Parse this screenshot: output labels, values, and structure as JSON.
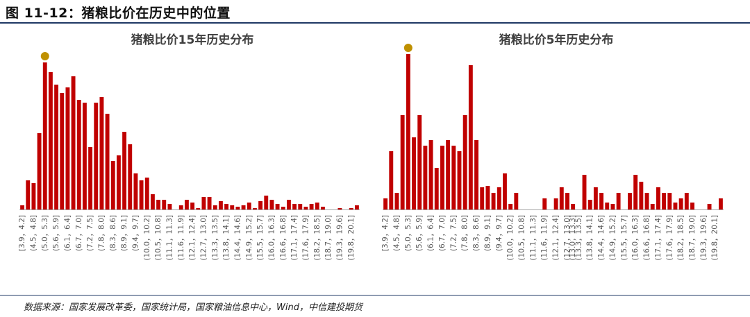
{
  "header": {
    "title": "图 11-12：猪粮比价在历史中的位置",
    "source": "数据来源：国家发展改革委，国家统计局，国家粮油信息中心，Wind，中信建投期货"
  },
  "colors": {
    "bar": "#c00000",
    "marker": "#bf9000",
    "axis": "#a6a6a6",
    "rule": "#1f3864"
  },
  "chart_data": [
    {
      "type": "bar",
      "title": "猪粮比价15年历史分布",
      "categories": [
        "[3.9，4.2]",
        "(4.2，4.5]",
        "(4.5，4.8]",
        "(4.8，5.0]",
        "(5.0，5.3]",
        "(5.3，5.6]",
        "(5.6，5.9]",
        "(5.9，6.1]",
        "(6.1，6.4]",
        "(6.4，6.7]",
        "(6.7，7.0]",
        "(7.0，7.2]",
        "(7.2，7.5]",
        "(7.5，7.8]",
        "(7.8，8.0]",
        "(8.0，8.3]",
        "(8.3，8.6]",
        "(8.6，8.9]",
        "(8.9，9.1]",
        "(9.1，9.4]",
        "(9.4，9.7]",
        "(9.7，10.0]",
        "(10.0，10.2]",
        "(10.2，10.5]",
        "(10.5，10.8]",
        "(10.8，11.1]",
        "(11.1，11.3]",
        "(11.3，11.6]",
        "(11.6，11.9]",
        "(11.9，12.1]",
        "(12.1，12.4]",
        "(12.4，12.7]",
        "(12.7，13.0]",
        "(13.0，13.3]",
        "(13.3，13.5]",
        "(13.5，13.8]",
        "(13.8，14.1]",
        "(14.1，14.4]",
        "(14.4，14.6]",
        "(14.6，14.9]",
        "(14.9，15.2]",
        "(15.2，15.5]",
        "(15.5，15.7]",
        "(15.7，16.0]",
        "(16.0，16.3]",
        "(16.3，16.6]",
        "(16.6，16.8]",
        "(16.8，17.1]",
        "(17.1，17.4]",
        "(17.4，17.6]",
        "(17.6，17.9]",
        "(17.9，18.2]",
        "(18.2，18.5]",
        "(18.5，18.7]",
        "(18.7，19.0]",
        "(19.0，19.3]",
        "(19.3，19.6]",
        "(19.6，19.8]",
        "(19.8，20.1]",
        "(20.1，20.4]"
      ],
      "tick_labels": [
        "[3.9，4.2]",
        "(4.5，4.8]",
        "(5.0，5.3]",
        "(5.6，5.9]",
        "(6.1，6.4]",
        "(6.7，7.0]",
        "(7.2，7.5]",
        "(7.8，8.0]",
        "(8.3，8.6]",
        "(8.9，9.1]",
        "(9.4，9.7]",
        "(10.0，10.2]",
        "(10.5，10.8]",
        "(11.1，11.3]",
        "(11.6，11.9]",
        "(12.1，12.4]",
        "(12.7，13.0]",
        "(13.3，13.5]",
        "(13.8，14.1]",
        "(14.4，14.6]",
        "(14.9，15.2]",
        "(15.5，15.7]",
        "(16.0，16.3]",
        "(16.6，16.8]",
        "(17.1，17.4]",
        "(17.6，17.9]",
        "(18.2，18.5]",
        "(18.7，19.0]",
        "(19.3，19.6]",
        "(19.8，20.1]"
      ],
      "values": [
        1.5,
        10.5,
        9.5,
        27.5,
        53,
        49.5,
        45,
        42,
        44,
        48,
        39.5,
        38.5,
        22.5,
        38.5,
        40.5,
        34.5,
        17.5,
        19.5,
        28,
        23.5,
        13,
        10.5,
        11.5,
        5.5,
        3.5,
        3.5,
        2,
        0,
        1.5,
        3.5,
        2.5,
        0.5,
        4.5,
        4.5,
        1.5,
        3,
        2,
        1.5,
        1,
        1.5,
        2.5,
        0.5,
        3,
        5,
        3.5,
        2,
        1,
        3.5,
        2,
        2,
        1,
        2,
        2.5,
        1,
        0,
        0,
        0.5,
        0,
        0.5,
        1.5
      ],
      "highlight_index": 4,
      "ylim": [
        0,
        60
      ]
    },
    {
      "type": "bar",
      "title": "猪粮比价5年历史分布",
      "categories": [
        "[3.9，4.2]",
        "(4.2，4.5]",
        "(4.5，4.8]",
        "(4.8，5.0]",
        "(5.0，5.3]",
        "(5.3，5.6]",
        "(5.6，5.9]",
        "(5.9，6.1]",
        "(6.1，6.4]",
        "(6.4，6.7]",
        "(6.7，7.0]",
        "(7.0，7.2]",
        "(7.2，7.5]",
        "(7.5，7.8]",
        "(7.8，8.0]",
        "(8.0，8.3]",
        "(8.3，8.6]",
        "(8.6，8.9]",
        "(8.9，9.1]",
        "(9.1，9.4]",
        "(9.4，9.7]",
        "(9.7，10.0]",
        "(10.0，10.2]",
        "(10.2，10.5]",
        "(10.5，10.8]",
        "(10.8，11.1]",
        "(11.1，11.3]",
        "(11.3，11.6]",
        "(11.6，11.9]",
        "(11.9，12.1]",
        "(12.1，12.4]",
        "(12.4，12.7]",
        "(12.7，13.0]",
        "(13.0，13.3]",
        "(13.3，13.5]",
        "(13.5，13.8]",
        "(13.8，14.1]",
        "(14.1，14.4]",
        "(14.4，14.6]",
        "(14.6，14.9]",
        "(14.9，15.2]",
        "(15.2，15.5]",
        "(15.5，15.7]",
        "(15.7，16.0]",
        "(16.0，16.3]",
        "(16.3，16.6]",
        "(16.6，16.8]",
        "(16.8，17.1]",
        "(17.1，17.4]",
        "(17.4，17.6]",
        "(17.6，17.9]",
        "(17.9，18.2]",
        "(18.2，18.5]",
        "(18.5，18.7]",
        "(18.7，19.0]",
        "(19.0，19.3]",
        "(19.3，19.6]",
        "(19.6，19.8]",
        "(19.8，20.1]",
        "(20.1，20.4]"
      ],
      "tick_labels": [
        "[3.9，4.2]",
        "(4.5，4.8]",
        "(5.0，5.3]",
        "(5.6，5.9]",
        "(6.1，6.4]",
        "(6.7，7.0]",
        "(7.2，7.5]",
        "(7.8，8.0]",
        "(8.3，8.6]",
        "(8.9，9.1]",
        "(9.4，9.7]",
        "(10.0，10.2]",
        "(10.5，10.8]",
        "(11.1，11.3]",
        "(11.6，11.9]",
        "(12.1，12.4]",
        "(12.7，13.0]",
        "(13.0，13.3]",
        "(13.3，13.5]",
        "(13.8，14.1]",
        "(14.4，14.6]",
        "(14.9，15.2]",
        "(15.5，15.7]",
        "(16.0，16.3]",
        "(16.6，16.8]",
        "(17.1，17.4]",
        "(17.6，17.9]",
        "(18.2，18.5]",
        "(18.7，19.0]",
        "(19.3，19.6]",
        "(19.8，20.1]"
      ],
      "values": [
        4,
        21,
        6,
        34,
        56,
        26,
        34,
        23,
        25,
        15,
        23,
        25,
        23,
        21,
        34,
        52,
        25,
        8,
        8.5,
        6,
        8,
        13,
        2,
        6,
        0,
        0,
        0,
        0,
        4,
        0,
        4,
        8,
        6,
        2,
        0,
        12.5,
        3.5,
        8,
        6,
        2.5,
        2,
        6,
        0,
        6,
        12.5,
        10,
        6,
        2,
        8,
        6,
        6,
        2.5,
        4,
        6,
        2.5,
        0,
        0,
        2,
        0,
        4
      ],
      "highlight_index": 4,
      "ylim": [
        0,
        60
      ]
    }
  ]
}
